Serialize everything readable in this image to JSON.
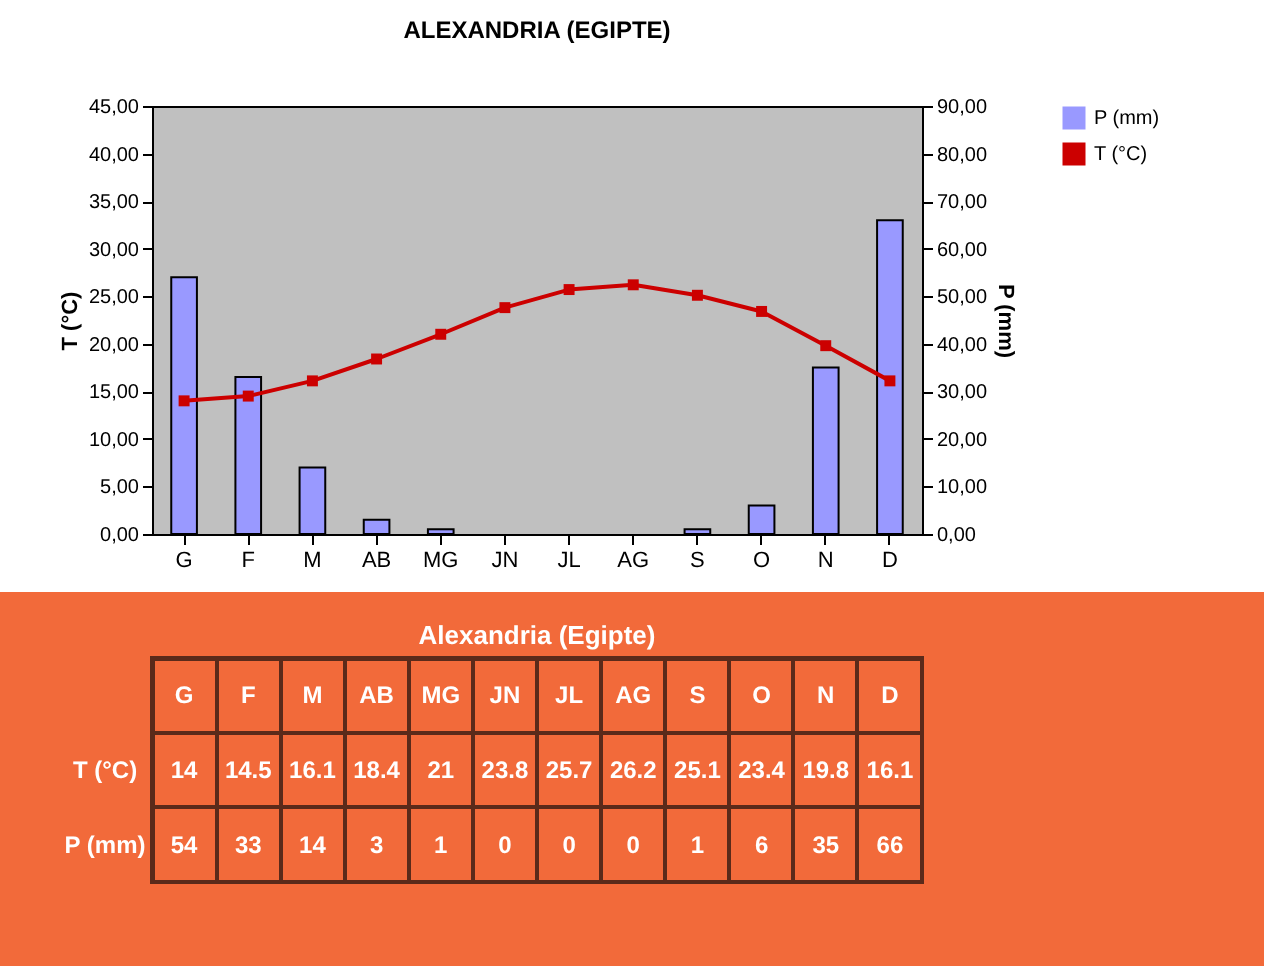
{
  "chart_data": {
    "type": "bar",
    "title": "ALEXANDRIA (EGIPTE)",
    "ylabel": "T (°C)",
    "y2label": "P (mm)",
    "categories": [
      "G",
      "F",
      "M",
      "AB",
      "MG",
      "JN",
      "JL",
      "AG",
      "S",
      "O",
      "N",
      "D"
    ],
    "series": [
      {
        "name": "P (mm)",
        "type": "bar",
        "axis": "y2",
        "color": "#9999ff",
        "values": [
          54,
          33,
          14,
          3,
          1,
          0,
          0,
          0,
          1,
          6,
          35,
          66
        ]
      },
      {
        "name": "T (°C)",
        "type": "line",
        "color": "#cc0000",
        "values": [
          14,
          14.5,
          16.1,
          18.4,
          21,
          23.8,
          25.7,
          26.2,
          25.1,
          23.4,
          19.8,
          16.1
        ]
      }
    ],
    "ylim": [
      0,
      45
    ],
    "yticks": [
      {
        "value": 0,
        "label": "0,00"
      },
      {
        "value": 5,
        "label": "5,00"
      },
      {
        "value": 10,
        "label": "10,00"
      },
      {
        "value": 15,
        "label": "15,00"
      },
      {
        "value": 20,
        "label": "20,00"
      },
      {
        "value": 25,
        "label": "25,00"
      },
      {
        "value": 30,
        "label": "30,00"
      },
      {
        "value": 35,
        "label": "35,00"
      },
      {
        "value": 40,
        "label": "40,00"
      },
      {
        "value": 45,
        "label": "45,00"
      }
    ],
    "y2lim": [
      0,
      90
    ],
    "y2ticks": [
      {
        "value": 0,
        "label": "0,00"
      },
      {
        "value": 10,
        "label": "10,00"
      },
      {
        "value": 20,
        "label": "20,00"
      },
      {
        "value": 30,
        "label": "30,00"
      },
      {
        "value": 40,
        "label": "40,00"
      },
      {
        "value": 50,
        "label": "50,00"
      },
      {
        "value": 60,
        "label": "60,00"
      },
      {
        "value": 70,
        "label": "70,00"
      },
      {
        "value": 80,
        "label": "80,00"
      },
      {
        "value": 90,
        "label": "90,00"
      }
    ],
    "legend": "right",
    "marker": "square",
    "data_labels": true,
    "annotations": [
      "Alexandria (Egipte)"
    ]
  }
}
